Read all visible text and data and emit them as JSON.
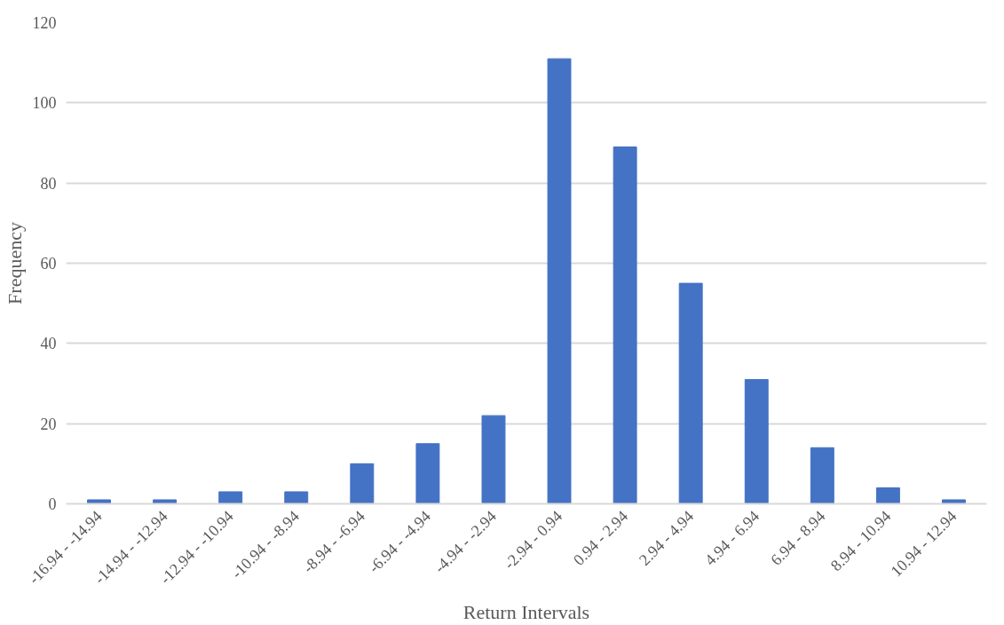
{
  "chart_data": {
    "type": "bar",
    "xlabel": "Return Intervals",
    "ylabel": "Frequency",
    "categories": [
      "-16.94 - -14.94",
      "-14.94 - -12.94",
      "-12.94 - -10.94",
      "-10.94 - -8.94",
      "-8.94 - -6.94",
      "-6.94 - -4.94",
      "-4.94 - -2.94",
      "-2.94 - 0.94",
      "0.94 - 2.94",
      "2.94 - 4.94",
      "4.94 - 6.94",
      "6.94 - 8.94",
      "8.94 - 10.94",
      "10.94 - 12.94"
    ],
    "values": [
      1,
      1,
      3,
      3,
      10,
      15,
      22,
      111,
      89,
      55,
      31,
      14,
      4,
      1
    ],
    "color": "#4472c4",
    "ylim": [
      0,
      120
    ],
    "yticks": [
      0,
      20,
      40,
      60,
      80,
      100,
      120
    ],
    "grid": "y"
  }
}
